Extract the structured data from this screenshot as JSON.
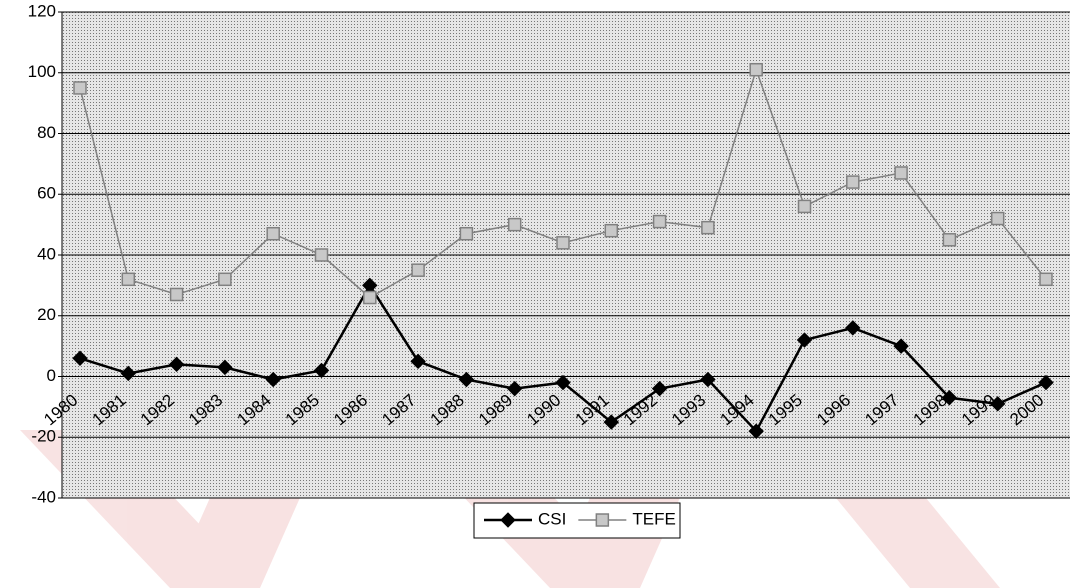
{
  "chart_data": {
    "type": "line",
    "categories": [
      "1980",
      "1981",
      "1982",
      "1983",
      "1984",
      "1985",
      "1986",
      "1987",
      "1988",
      "1989",
      "1990",
      "1991",
      "1992",
      "1993",
      "1994",
      "1995",
      "1996",
      "1997",
      "1998",
      "1999",
      "2000"
    ],
    "series": [
      {
        "name": "CSI",
        "color": "#000000",
        "marker": "diamond",
        "values": [
          6,
          1,
          4,
          3,
          -1,
          2,
          30,
          5,
          -1,
          -4,
          -2,
          -15,
          -4,
          -1,
          -18,
          12,
          16,
          10,
          -7,
          -9,
          -2
        ]
      },
      {
        "name": "TEFE",
        "color": "#808080",
        "marker": "square",
        "values": [
          95,
          32,
          27,
          32,
          47,
          40,
          26,
          35,
          47,
          50,
          44,
          48,
          51,
          49,
          101,
          56,
          64,
          67,
          45,
          52,
          32
        ]
      }
    ],
    "ylim": [
      -40,
      120
    ],
    "yticks": [
      -40,
      -20,
      0,
      20,
      40,
      60,
      80,
      100,
      120
    ],
    "grid": true,
    "legend": "bottom"
  }
}
